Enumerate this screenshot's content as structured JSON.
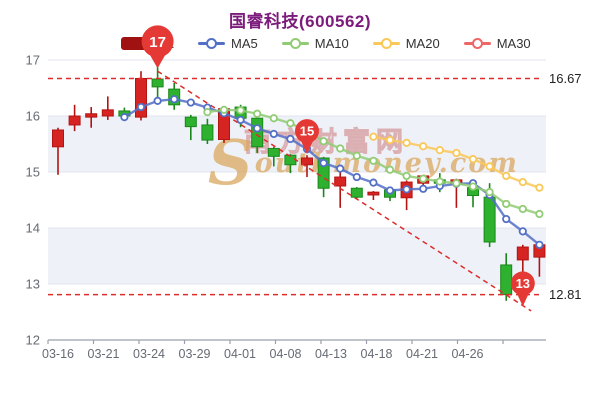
{
  "header": {
    "title": "国睿科技(600562)"
  },
  "legend": {
    "items": [
      {
        "label": "K",
        "color": "#a01212",
        "type": "rect"
      },
      {
        "label": "MA5",
        "color": "#5470c6",
        "type": "line"
      },
      {
        "label": "MA10",
        "color": "#91cc75",
        "type": "line"
      },
      {
        "label": "MA20",
        "color": "#fac858",
        "type": "line"
      },
      {
        "label": "MA30",
        "color": "#ee6666",
        "type": "line"
      }
    ]
  },
  "watermark": {
    "cn": "南方财富网",
    "en_initial": "S",
    "en_rest": "outhmoney.com"
  },
  "chart_data": {
    "type": "candlestick",
    "title": "国睿科技(600562)",
    "legend": [
      "K",
      "MA5",
      "MA10",
      "MA20",
      "MA30"
    ],
    "x_axis_labels": [
      "03-16",
      "03-21",
      "03-24",
      "03-29",
      "04-01",
      "04-08",
      "04-13",
      "04-18",
      "04-21",
      "04-26"
    ],
    "y_ticks": [
      17,
      16,
      15,
      14,
      13,
      12
    ],
    "ylim": [
      12,
      17
    ],
    "grid": true,
    "legend_position": "top",
    "dates": [
      "03-16",
      "03-17",
      "03-18",
      "03-21",
      "03-22",
      "03-23",
      "03-24",
      "03-25",
      "03-28",
      "03-29",
      "03-30",
      "03-31",
      "04-01",
      "04-06",
      "04-07",
      "04-08",
      "04-11",
      "04-12",
      "04-13",
      "04-14",
      "04-15",
      "04-18",
      "04-19",
      "04-20",
      "04-21",
      "04-22",
      "04-25",
      "04-26",
      "04-27",
      "04-28"
    ],
    "ohlc_order": [
      "open",
      "high",
      "low",
      "close"
    ],
    "ohlc": [
      [
        15.45,
        15.79,
        14.95,
        15.75
      ],
      [
        15.84,
        16.2,
        15.73,
        16.0
      ],
      [
        15.98,
        16.16,
        15.79,
        16.04
      ],
      [
        16.0,
        16.35,
        15.93,
        16.11
      ],
      [
        16.09,
        16.15,
        15.94,
        16.0
      ],
      [
        15.98,
        16.8,
        15.92,
        16.67
      ],
      [
        16.66,
        16.93,
        16.23,
        16.52
      ],
      [
        16.48,
        16.59,
        16.11,
        16.2
      ],
      [
        15.98,
        16.02,
        15.57,
        15.81
      ],
      [
        15.84,
        15.95,
        15.5,
        15.57
      ],
      [
        15.58,
        16.18,
        15.52,
        16.13
      ],
      [
        16.16,
        16.2,
        15.8,
        15.96
      ],
      [
        15.96,
        16.0,
        15.34,
        15.45
      ],
      [
        15.42,
        15.45,
        15.1,
        15.28
      ],
      [
        15.3,
        15.32,
        14.98,
        15.13
      ],
      [
        15.13,
        15.3,
        14.91,
        15.25
      ],
      [
        15.25,
        15.27,
        14.55,
        14.71
      ],
      [
        14.75,
        15.04,
        14.36,
        14.91
      ],
      [
        14.71,
        14.73,
        14.52,
        14.55
      ],
      [
        14.59,
        14.66,
        14.5,
        14.64
      ],
      [
        14.68,
        14.7,
        14.48,
        14.55
      ],
      [
        14.54,
        14.85,
        14.32,
        14.82
      ],
      [
        14.8,
        14.95,
        14.7,
        14.93
      ],
      [
        14.86,
        14.98,
        14.64,
        14.8
      ],
      [
        14.79,
        14.88,
        14.36,
        14.86
      ],
      [
        14.72,
        14.77,
        14.37,
        14.58
      ],
      [
        14.55,
        14.8,
        13.66,
        13.75
      ],
      [
        13.34,
        13.55,
        12.7,
        12.81
      ],
      [
        13.43,
        13.7,
        12.62,
        13.66
      ],
      [
        13.48,
        13.75,
        13.13,
        13.7
      ]
    ],
    "series": [
      {
        "name": "MA5",
        "color": "#5470c6",
        "start_index": 4,
        "values": [
          15.98,
          16.16,
          16.27,
          16.3,
          16.24,
          16.15,
          16.05,
          15.93,
          15.78,
          15.68,
          15.59,
          15.41,
          15.16,
          15.06,
          14.91,
          14.81,
          14.67,
          14.69,
          14.7,
          14.75,
          14.79,
          14.8,
          14.59,
          14.16,
          13.94,
          13.7
        ]
      },
      {
        "name": "MA10",
        "color": "#91cc75",
        "start_index": 9,
        "values": [
          16.07,
          16.11,
          16.1,
          16.04,
          15.96,
          15.87,
          15.73,
          15.55,
          15.42,
          15.29,
          15.2,
          15.04,
          14.93,
          14.88,
          14.83,
          14.8,
          14.74,
          14.64,
          14.43,
          14.34,
          14.25
        ]
      },
      {
        "name": "MA20",
        "color": "#fac858",
        "start_index": 19,
        "values": [
          15.63,
          15.57,
          15.52,
          15.46,
          15.39,
          15.34,
          15.23,
          15.1,
          14.93,
          14.82,
          14.72
        ]
      },
      {
        "name": "MA30",
        "color": "#ee6666",
        "start_index": null,
        "values": []
      }
    ],
    "markers": [
      {
        "label": "17",
        "index": 6,
        "price": 16.85,
        "size": "large"
      },
      {
        "label": "15",
        "index": 15,
        "price": 15.32,
        "size": "small"
      },
      {
        "label": "13",
        "index": 28,
        "price": 12.6,
        "size": "small"
      }
    ],
    "ref_lines": [
      {
        "value": 16.67,
        "label": "16.67"
      },
      {
        "value": 12.81,
        "label": "12.81"
      }
    ],
    "trend_line": {
      "from_index": 6,
      "from_price": 16.8,
      "to_index": 28.5,
      "to_price": 12.52
    },
    "colors": {
      "up_fill": "#d62422",
      "up_border": "#b31412",
      "down_fill": "#2eb12e",
      "down_border": "#1a871a",
      "marker": "#e53935",
      "ref_line": "#dd2c2c",
      "grid": "#e0e6f1",
      "band": "#eef1f8",
      "axis": "#9aa0ab",
      "tick_text": "#666b74"
    }
  }
}
